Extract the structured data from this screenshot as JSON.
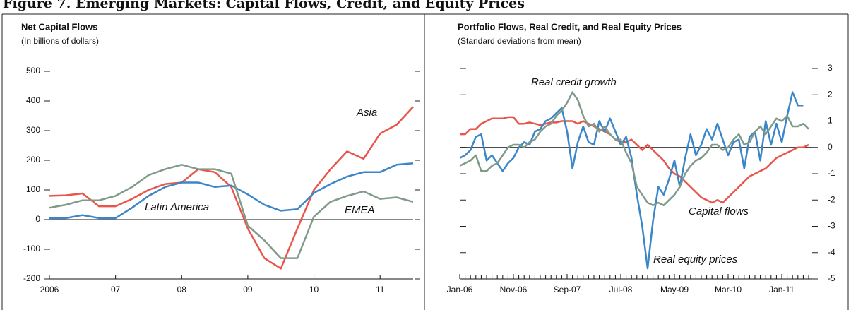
{
  "title": "Figure 7. Emerging Markets: Capital Flows, Credit, and Equity Prices",
  "chart_data": [
    {
      "type": "line",
      "title": "Net Capital Flows",
      "subtitle": "(In billions of dollars)",
      "x": [
        2006,
        2006.25,
        2006.5,
        2006.75,
        2007,
        2007.25,
        2007.5,
        2007.75,
        2008,
        2008.25,
        2008.5,
        2008.75,
        2009,
        2009.25,
        2009.5,
        2009.75,
        2010,
        2010.25,
        2010.5,
        2010.75,
        2011,
        2011.25,
        2011.5
      ],
      "xlim": [
        2006,
        2011.5
      ],
      "xticks": [
        {
          "value": 2006,
          "label": "2006"
        },
        {
          "value": 2007,
          "label": "07"
        },
        {
          "value": 2008,
          "label": "08"
        },
        {
          "value": 2009,
          "label": "09"
        },
        {
          "value": 2010,
          "label": "10"
        },
        {
          "value": 2011,
          "label": "11"
        }
      ],
      "ylim": [
        -200,
        500
      ],
      "yticks": [
        -200,
        -100,
        0,
        100,
        200,
        300,
        400,
        500
      ],
      "series": [
        {
          "name": "Asia",
          "color": "#e8554a",
          "values": [
            80,
            82,
            88,
            45,
            45,
            70,
            100,
            120,
            125,
            170,
            160,
            110,
            -30,
            -130,
            -165,
            -30,
            100,
            170,
            230,
            205,
            290,
            320,
            380
          ]
        },
        {
          "name": "Latin America",
          "color": "#3a86c8",
          "values": [
            5,
            5,
            15,
            5,
            5,
            40,
            80,
            110,
            125,
            125,
            110,
            115,
            85,
            50,
            30,
            35,
            90,
            120,
            145,
            160,
            160,
            185,
            190
          ]
        },
        {
          "name": "EMEA",
          "color": "#7f9a88",
          "values": [
            40,
            50,
            65,
            65,
            80,
            110,
            150,
            170,
            185,
            170,
            170,
            155,
            -20,
            -70,
            -130,
            -130,
            10,
            60,
            80,
            95,
            70,
            75,
            60
          ]
        }
      ]
    },
    {
      "type": "line",
      "title": "Portfolio Flows, Real Credit, and Real Equity Prices",
      "subtitle": "(Standard deviations from mean)",
      "categories": [
        "Jan-06",
        null,
        null,
        null,
        null,
        null,
        null,
        null,
        null,
        null,
        "Nov-06",
        null,
        null,
        null,
        null,
        null,
        null,
        null,
        null,
        null,
        "Sep-07",
        null,
        null,
        null,
        null,
        null,
        null,
        null,
        null,
        null,
        "Jul-08",
        null,
        null,
        null,
        null,
        null,
        null,
        null,
        null,
        null,
        "May-09",
        null,
        null,
        null,
        null,
        null,
        null,
        null,
        null,
        null,
        "Mar-10",
        null,
        null,
        null,
        null,
        null,
        null,
        null,
        null,
        null,
        "Jan-11",
        null,
        null,
        null,
        null,
        null
      ],
      "ylim": [
        -5,
        3
      ],
      "yticks": [
        -5,
        -4,
        -3,
        -2,
        -1,
        0,
        1,
        2,
        3
      ],
      "y_axis_side": "right",
      "series": [
        {
          "name": "Real credit growth",
          "color": "#e8554a",
          "values": [
            0.5,
            0.5,
            0.7,
            0.7,
            0.9,
            1.0,
            1.1,
            1.1,
            1.1,
            1.15,
            1.15,
            0.9,
            0.9,
            0.95,
            0.9,
            0.85,
            0.9,
            0.95,
            0.95,
            1.0,
            1.0,
            1.0,
            0.9,
            1.0,
            0.9,
            0.8,
            0.7,
            0.6,
            0.5,
            0.3,
            0.2,
            0.2,
            0.3,
            0.1,
            -0.1,
            0.1,
            -0.1,
            -0.3,
            -0.5,
            -0.8,
            -1.0,
            -1.1,
            -1.3,
            -1.5,
            -1.7,
            -1.9,
            -2.0,
            -2.1,
            -2.0,
            -2.1,
            -1.9,
            -1.7,
            -1.5,
            -1.3,
            -1.1,
            -1.0,
            -0.9,
            -0.8,
            -0.6,
            -0.4,
            -0.3,
            -0.2,
            -0.1,
            0,
            0,
            0.1
          ]
        },
        {
          "name": "Capital flows",
          "color": "#3a86c8",
          "values": [
            -0.4,
            -0.3,
            -0.1,
            0.4,
            0.5,
            -0.5,
            -0.3,
            -0.6,
            -0.9,
            -0.6,
            -0.4,
            0,
            0.2,
            0.1,
            0.6,
            0.7,
            1.0,
            1.1,
            1.3,
            1.5,
            0.6,
            -0.8,
            0.2,
            0.8,
            0.2,
            0.1,
            1.0,
            0.6,
            1.1,
            0.6,
            0.1,
            0.4,
            -0.4,
            -1.8,
            -3.0,
            -4.6,
            -2.8,
            -1.5,
            -1.8,
            -1.2,
            -0.5,
            -1.5,
            -0.4,
            0.5,
            -0.3,
            0.1,
            0.7,
            0.3,
            0.9,
            0.3,
            -0.3,
            0.2,
            0.3,
            -0.8,
            0.4,
            0.6,
            -0.5,
            1.0,
            0.1,
            0.9,
            0.2,
            1.2,
            2.1,
            1.6,
            1.6,
            null
          ]
        },
        {
          "name": "Real equity prices",
          "color": "#7f9a88",
          "values": [
            -0.7,
            -0.6,
            -0.5,
            -0.3,
            -0.9,
            -0.9,
            -0.7,
            -0.6,
            -0.3,
            0,
            0.1,
            0.1,
            0,
            0.2,
            0.3,
            0.6,
            0.8,
            0.9,
            1.2,
            1.4,
            1.7,
            2.1,
            1.8,
            1.2,
            0.8,
            0.9,
            0.6,
            0.8,
            0.5,
            0.3,
            0.3,
            -0.2,
            -0.6,
            -1.5,
            -1.8,
            -2.1,
            -2.2,
            -2.1,
            -2.2,
            -2.0,
            -1.8,
            -1.5,
            -1.0,
            -0.7,
            -0.5,
            -0.4,
            -0.2,
            0.1,
            0.1,
            -0.1,
            0,
            0.3,
            0.5,
            0.1,
            0.2,
            0.6,
            0.8,
            0.5,
            0.8,
            1.1,
            1.0,
            1.2,
            0.8,
            0.8,
            0.9,
            0.7
          ]
        }
      ]
    }
  ]
}
